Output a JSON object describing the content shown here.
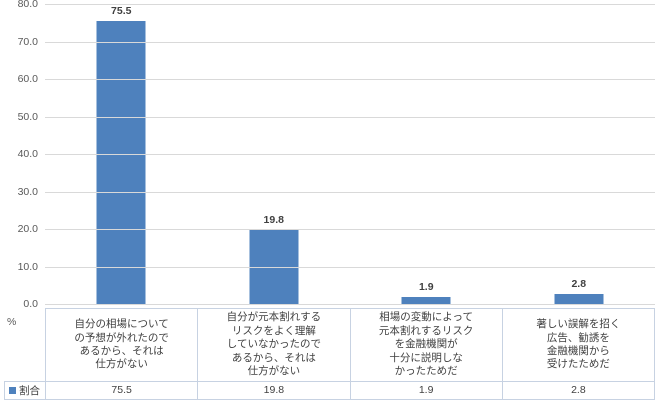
{
  "chart_data": {
    "type": "bar",
    "title": "",
    "xlabel": "",
    "ylabel": "%",
    "ylim": [
      0,
      80
    ],
    "yticks": [
      "80.0",
      "70.0",
      "60.0",
      "50.0",
      "40.0",
      "30.0",
      "20.0",
      "10.0",
      "0.0"
    ],
    "grid": true,
    "legend_position": "bottom-table",
    "categories": [
      "自分の相場についての予想が外れたのであるから、それは仕方がない",
      "自分が元本割れするリスクをよく理解していなかったのであるから、それは仕方がない",
      "相場の変動によって元本割れするリスクを金融機関が十分に説明しなかったためだ",
      "著しい誤解を招く広告、勧誘を金融機関から受けたためだ"
    ],
    "categories_multiline": [
      "自分の相場について\nの予想が外れたので\nあるから、それは\n仕方がない",
      "自分が元本割れする\nリスクをよく理解\nしていなかったので\nあるから、それは\n仕方がない",
      "相場の変動によって\n元本割れするリスク\nを金融機関が\n十分に説明しな\nかったためだ",
      "著しい誤解を招く\n広告、勧誘を\n金融機関から\n受けたためだ"
    ],
    "series": [
      {
        "name": "割合",
        "values": [
          75.5,
          19.8,
          1.9,
          2.8
        ],
        "value_labels": [
          "75.5",
          "19.8",
          "1.9",
          "2.8"
        ],
        "color": "#4e81bd"
      }
    ]
  },
  "axis": {
    "unit_label": "%"
  },
  "data_table": {
    "row_header": "割合",
    "values": [
      "75.5",
      "19.8",
      "1.9",
      "2.8"
    ]
  },
  "colors": {
    "bar": "#4e81bd",
    "gridline": "#d9d9d9",
    "table_border": "#c7d2e2",
    "tick_text": "#595959",
    "label_text": "#404040"
  }
}
